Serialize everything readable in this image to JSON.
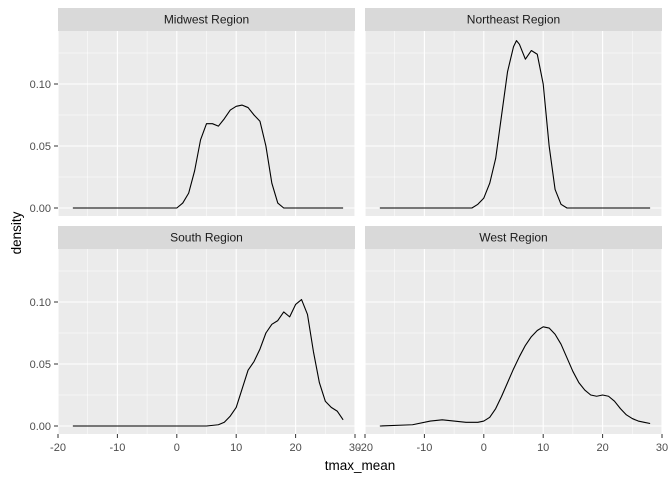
{
  "chart_data": {
    "type": "line",
    "xlabel": "tmax_mean",
    "ylabel": "density",
    "xlim": [
      -20,
      30
    ],
    "ylim": [
      0,
      0.14
    ],
    "x_ticks": [
      -20,
      -10,
      0,
      10,
      20,
      30
    ],
    "x_tick_labels": [
      "-20",
      "-10",
      "0",
      "10",
      "20",
      "30"
    ],
    "y_ticks": [
      0,
      0.05,
      0.1
    ],
    "y_tick_labels": [
      "0.00",
      "0.05",
      "0.10"
    ],
    "grid": true,
    "layout": "facet grid 2x2",
    "colors": {
      "panel_bg": "#ebebeb",
      "strip_bg": "#d9d9d9",
      "grid_major": "#ffffff",
      "line": "#000000"
    },
    "facets": [
      {
        "name": "Midwest Region",
        "x": [
          -17.5,
          0,
          1,
          2,
          3,
          4,
          5,
          6,
          7,
          8,
          9,
          10,
          11,
          12,
          13,
          14,
          15,
          16,
          17,
          18,
          19,
          28
        ],
        "y": [
          0,
          0,
          0.004,
          0.012,
          0.03,
          0.055,
          0.068,
          0.068,
          0.066,
          0.072,
          0.079,
          0.082,
          0.083,
          0.081,
          0.075,
          0.07,
          0.05,
          0.02,
          0.004,
          0,
          0,
          0
        ]
      },
      {
        "name": "Northeast Region",
        "x": [
          -17.5,
          -2,
          -1,
          0,
          1,
          2,
          3,
          4,
          5,
          5.5,
          6,
          7,
          8,
          9,
          10,
          11,
          12,
          13,
          14,
          28
        ],
        "y": [
          0,
          0,
          0.003,
          0.008,
          0.02,
          0.04,
          0.075,
          0.11,
          0.13,
          0.135,
          0.132,
          0.12,
          0.127,
          0.124,
          0.1,
          0.05,
          0.015,
          0.003,
          0,
          0
        ]
      },
      {
        "name": "South Region",
        "x": [
          -17.5,
          5,
          7,
          8,
          9,
          10,
          11,
          12,
          13,
          14,
          15,
          16,
          17,
          18,
          19,
          20,
          21,
          22,
          23,
          24,
          25,
          26,
          27,
          28
        ],
        "y": [
          0,
          0,
          0.001,
          0.003,
          0.008,
          0.015,
          0.03,
          0.045,
          0.052,
          0.062,
          0.075,
          0.082,
          0.085,
          0.092,
          0.088,
          0.098,
          0.102,
          0.09,
          0.06,
          0.035,
          0.02,
          0.015,
          0.012,
          0.005
        ]
      },
      {
        "name": "West Region",
        "x": [
          -17.5,
          -12,
          -9,
          -7,
          -5,
          -3,
          -1,
          0,
          1,
          2,
          3,
          4,
          5,
          6,
          7,
          8,
          9,
          10,
          11,
          12,
          13,
          14,
          15,
          16,
          17,
          18,
          19,
          20,
          21,
          22,
          23,
          24,
          25,
          26,
          27,
          28
        ],
        "y": [
          0,
          0.001,
          0.004,
          0.005,
          0.004,
          0.003,
          0.003,
          0.004,
          0.007,
          0.014,
          0.024,
          0.035,
          0.046,
          0.056,
          0.065,
          0.072,
          0.077,
          0.08,
          0.079,
          0.074,
          0.066,
          0.055,
          0.044,
          0.035,
          0.029,
          0.025,
          0.024,
          0.025,
          0.024,
          0.02,
          0.014,
          0.009,
          0.006,
          0.004,
          0.003,
          0.002
        ]
      }
    ]
  }
}
